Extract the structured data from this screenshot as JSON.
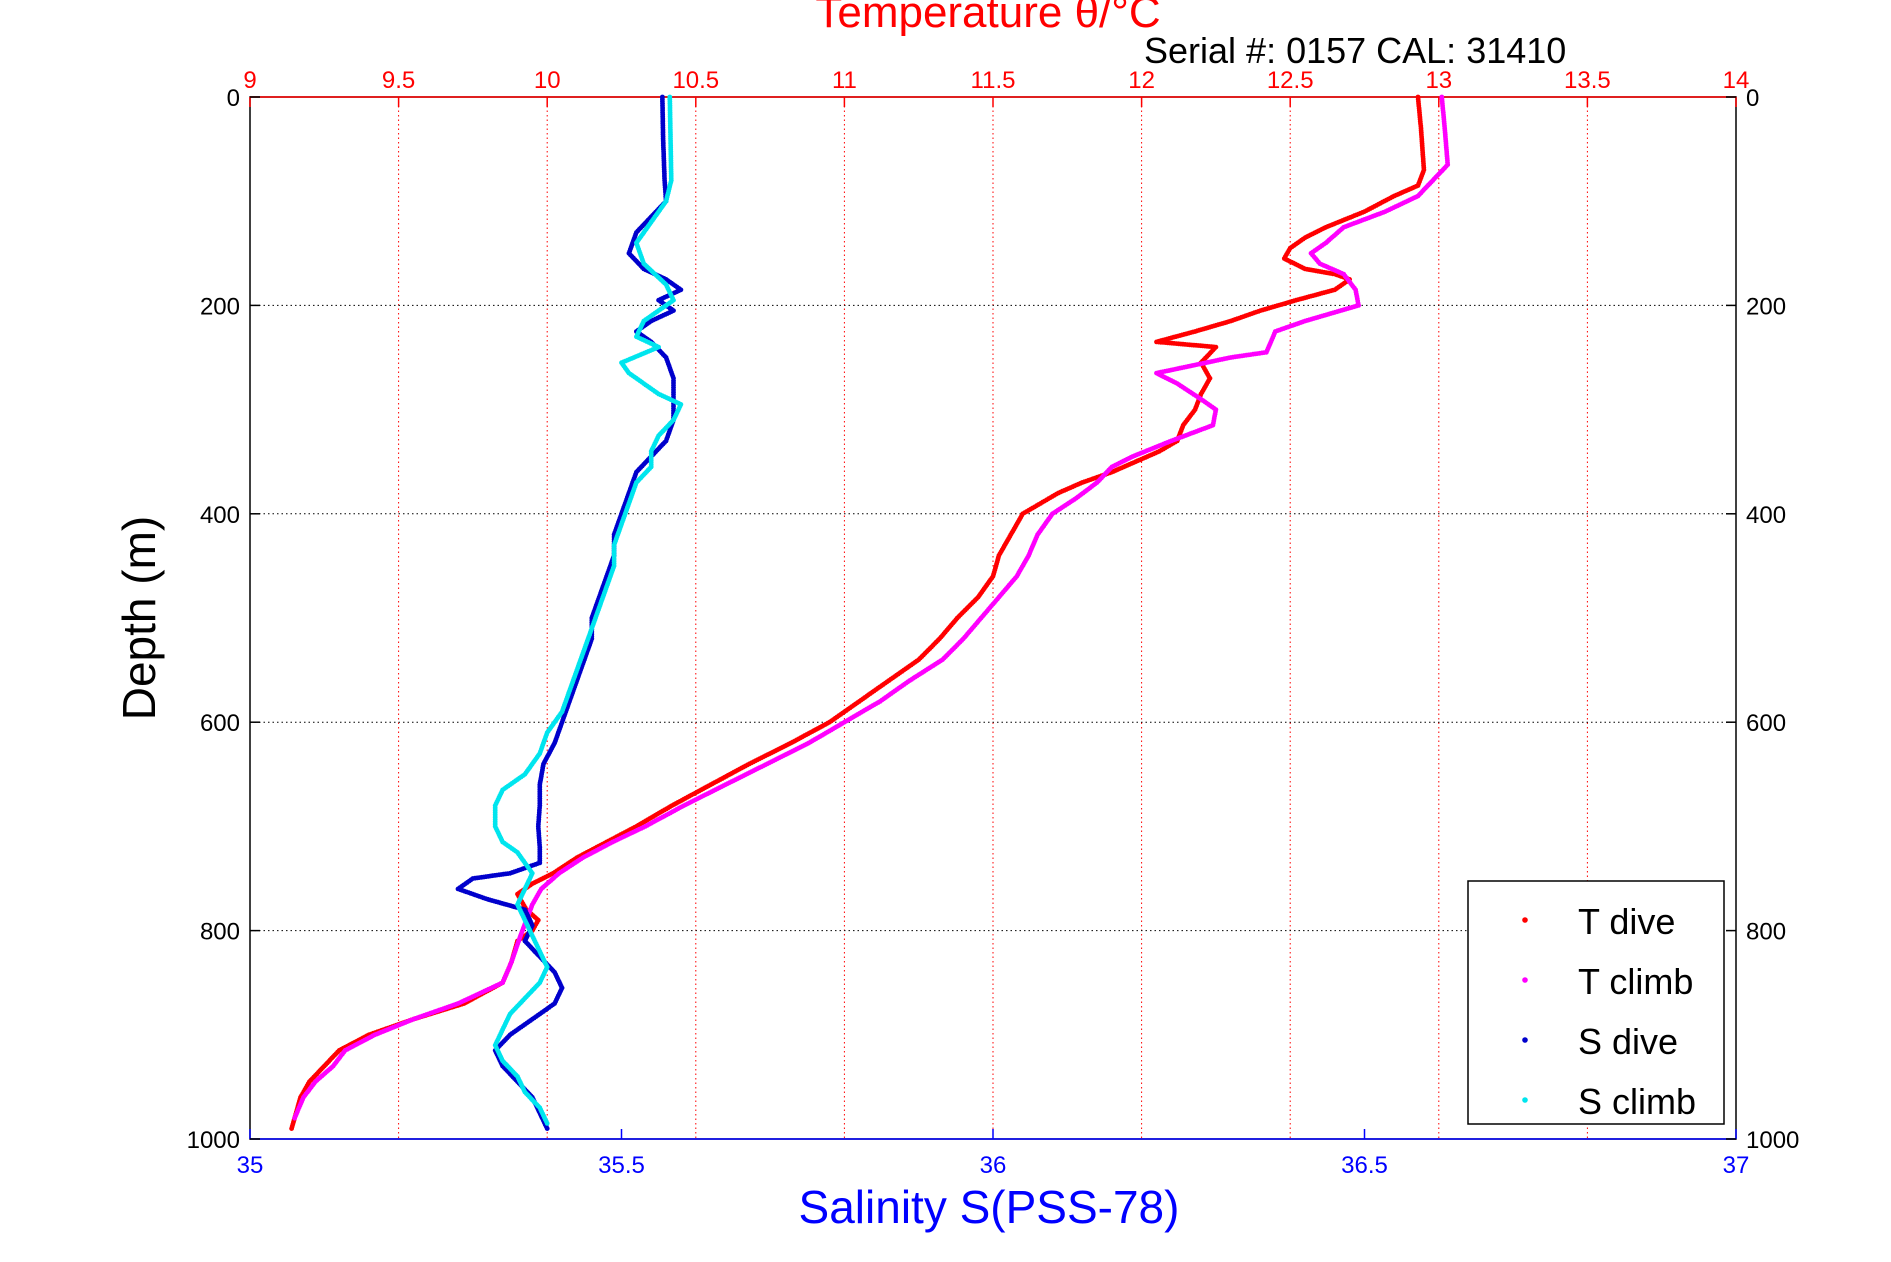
{
  "chart_data": {
    "type": "scatter",
    "title": "Temperature θ/°C",
    "subtitle": "Serial #: 0157  CAL: 31410",
    "ylabel": "Depth (m)",
    "xlabel_bottom": "Salinity S(PSS-78)",
    "xlabel_top": "Temperature θ/°C",
    "ylim": [
      0,
      1000
    ],
    "y_reversed": true,
    "y_ticks": [
      "0",
      "200",
      "400",
      "600",
      "800",
      "1000"
    ],
    "x_bottom_lim": [
      35,
      37
    ],
    "x_bottom_ticks": [
      "35",
      "35.5",
      "36",
      "36.5",
      "37"
    ],
    "x_top_lim": [
      9,
      14
    ],
    "x_top_ticks": [
      "9",
      "9.5",
      "10",
      "10.5",
      "11",
      "11.5",
      "12",
      "12.5",
      "13",
      "13.5",
      "14"
    ],
    "grid": true,
    "legend_position": "bottom-right",
    "colors": {
      "t_dive": "#ff0000",
      "t_climb": "#ff00ff",
      "s_dive": "#0000cc",
      "s_climb": "#00e5ee",
      "top_axis": "#ff0000",
      "bottom_axis": "#0000ff"
    },
    "series": [
      {
        "name": "T dive",
        "axis": "top",
        "color": "#ff0000",
        "points": [
          [
            12.93,
            0
          ],
          [
            12.94,
            30
          ],
          [
            12.95,
            70
          ],
          [
            12.93,
            85
          ],
          [
            12.85,
            95
          ],
          [
            12.75,
            110
          ],
          [
            12.62,
            125
          ],
          [
            12.55,
            135
          ],
          [
            12.5,
            145
          ],
          [
            12.48,
            155
          ],
          [
            12.55,
            165
          ],
          [
            12.65,
            170
          ],
          [
            12.7,
            175
          ],
          [
            12.65,
            185
          ],
          [
            12.52,
            195
          ],
          [
            12.4,
            205
          ],
          [
            12.3,
            215
          ],
          [
            12.18,
            225
          ],
          [
            12.05,
            235
          ],
          [
            12.25,
            240
          ],
          [
            12.2,
            255
          ],
          [
            12.23,
            270
          ],
          [
            12.2,
            285
          ],
          [
            12.18,
            300
          ],
          [
            12.14,
            315
          ],
          [
            12.12,
            330
          ],
          [
            12.06,
            340
          ],
          [
            11.98,
            350
          ],
          [
            11.9,
            360
          ],
          [
            11.8,
            370
          ],
          [
            11.72,
            380
          ],
          [
            11.66,
            390
          ],
          [
            11.6,
            400
          ],
          [
            11.56,
            420
          ],
          [
            11.52,
            440
          ],
          [
            11.5,
            460
          ],
          [
            11.45,
            480
          ],
          [
            11.38,
            500
          ],
          [
            11.32,
            520
          ],
          [
            11.25,
            540
          ],
          [
            11.15,
            560
          ],
          [
            11.05,
            580
          ],
          [
            10.95,
            600
          ],
          [
            10.82,
            620
          ],
          [
            10.68,
            640
          ],
          [
            10.55,
            660
          ],
          [
            10.42,
            680
          ],
          [
            10.3,
            700
          ],
          [
            10.2,
            715
          ],
          [
            10.1,
            730
          ],
          [
            10.02,
            745
          ],
          [
            9.95,
            755
          ],
          [
            9.9,
            765
          ],
          [
            9.93,
            780
          ],
          [
            9.97,
            790
          ],
          [
            9.95,
            800
          ],
          [
            9.9,
            810
          ],
          [
            9.88,
            830
          ],
          [
            9.85,
            850
          ],
          [
            9.72,
            870
          ],
          [
            9.55,
            885
          ],
          [
            9.4,
            900
          ],
          [
            9.3,
            915
          ],
          [
            9.25,
            930
          ],
          [
            9.2,
            945
          ],
          [
            9.17,
            960
          ],
          [
            9.15,
            980
          ],
          [
            9.14,
            990
          ]
        ]
      },
      {
        "name": "T climb",
        "axis": "top",
        "color": "#ff00ff",
        "points": [
          [
            13.01,
            0
          ],
          [
            13.02,
            30
          ],
          [
            13.03,
            65
          ],
          [
            12.98,
            80
          ],
          [
            12.93,
            95
          ],
          [
            12.82,
            110
          ],
          [
            12.68,
            125
          ],
          [
            12.62,
            140
          ],
          [
            12.57,
            150
          ],
          [
            12.6,
            160
          ],
          [
            12.68,
            170
          ],
          [
            12.72,
            185
          ],
          [
            12.73,
            200
          ],
          [
            12.55,
            215
          ],
          [
            12.45,
            225
          ],
          [
            12.42,
            245
          ],
          [
            12.3,
            250
          ],
          [
            12.05,
            265
          ],
          [
            12.12,
            275
          ],
          [
            12.2,
            290
          ],
          [
            12.25,
            300
          ],
          [
            12.24,
            315
          ],
          [
            12.1,
            330
          ],
          [
            11.97,
            345
          ],
          [
            11.9,
            355
          ],
          [
            11.85,
            370
          ],
          [
            11.78,
            385
          ],
          [
            11.7,
            400
          ],
          [
            11.65,
            420
          ],
          [
            11.62,
            440
          ],
          [
            11.58,
            460
          ],
          [
            11.52,
            480
          ],
          [
            11.46,
            500
          ],
          [
            11.4,
            520
          ],
          [
            11.33,
            540
          ],
          [
            11.22,
            560
          ],
          [
            11.12,
            580
          ],
          [
            11.0,
            600
          ],
          [
            10.88,
            620
          ],
          [
            10.74,
            640
          ],
          [
            10.6,
            660
          ],
          [
            10.46,
            680
          ],
          [
            10.33,
            700
          ],
          [
            10.22,
            715
          ],
          [
            10.12,
            730
          ],
          [
            10.04,
            745
          ],
          [
            9.98,
            760
          ],
          [
            9.95,
            775
          ],
          [
            9.93,
            790
          ],
          [
            9.91,
            805
          ],
          [
            9.88,
            830
          ],
          [
            9.85,
            850
          ],
          [
            9.7,
            870
          ],
          [
            9.55,
            885
          ],
          [
            9.42,
            900
          ],
          [
            9.32,
            915
          ],
          [
            9.28,
            930
          ],
          [
            9.22,
            945
          ],
          [
            9.18,
            960
          ],
          [
            9.15,
            980
          ]
        ]
      },
      {
        "name": "S dive",
        "axis": "bottom",
        "color": "#0000cc",
        "points": [
          [
            35.555,
            0
          ],
          [
            35.556,
            40
          ],
          [
            35.558,
            80
          ],
          [
            35.56,
            100
          ],
          [
            35.54,
            115
          ],
          [
            35.52,
            130
          ],
          [
            35.51,
            150
          ],
          [
            35.53,
            165
          ],
          [
            35.56,
            175
          ],
          [
            35.58,
            185
          ],
          [
            35.55,
            195
          ],
          [
            35.57,
            205
          ],
          [
            35.54,
            215
          ],
          [
            35.52,
            225
          ],
          [
            35.54,
            235
          ],
          [
            35.56,
            250
          ],
          [
            35.57,
            270
          ],
          [
            35.57,
            290
          ],
          [
            35.57,
            310
          ],
          [
            35.56,
            330
          ],
          [
            35.54,
            345
          ],
          [
            35.52,
            360
          ],
          [
            35.51,
            380
          ],
          [
            35.5,
            400
          ],
          [
            35.49,
            420
          ],
          [
            35.49,
            440
          ],
          [
            35.48,
            460
          ],
          [
            35.47,
            480
          ],
          [
            35.46,
            500
          ],
          [
            35.46,
            520
          ],
          [
            35.45,
            540
          ],
          [
            35.44,
            560
          ],
          [
            35.43,
            580
          ],
          [
            35.42,
            600
          ],
          [
            35.41,
            620
          ],
          [
            35.395,
            640
          ],
          [
            35.39,
            660
          ],
          [
            35.39,
            680
          ],
          [
            35.388,
            700
          ],
          [
            35.39,
            720
          ],
          [
            35.39,
            735
          ],
          [
            35.35,
            745
          ],
          [
            35.3,
            750
          ],
          [
            35.28,
            760
          ],
          [
            35.32,
            770
          ],
          [
            35.37,
            780
          ],
          [
            35.38,
            795
          ],
          [
            35.37,
            810
          ],
          [
            35.39,
            825
          ],
          [
            35.41,
            840
          ],
          [
            35.42,
            855
          ],
          [
            35.41,
            870
          ],
          [
            35.38,
            885
          ],
          [
            35.35,
            900
          ],
          [
            35.33,
            915
          ],
          [
            35.34,
            930
          ],
          [
            35.36,
            945
          ],
          [
            35.38,
            960
          ],
          [
            35.39,
            975
          ],
          [
            35.4,
            990
          ]
        ]
      },
      {
        "name": "S climb",
        "axis": "bottom",
        "color": "#00e5ee",
        "points": [
          [
            35.565,
            0
          ],
          [
            35.566,
            40
          ],
          [
            35.567,
            80
          ],
          [
            35.56,
            100
          ],
          [
            35.54,
            120
          ],
          [
            35.52,
            140
          ],
          [
            35.53,
            160
          ],
          [
            35.56,
            180
          ],
          [
            35.57,
            195
          ],
          [
            35.55,
            205
          ],
          [
            35.53,
            215
          ],
          [
            35.52,
            230
          ],
          [
            35.55,
            240
          ],
          [
            35.5,
            255
          ],
          [
            35.51,
            265
          ],
          [
            35.53,
            275
          ],
          [
            35.55,
            285
          ],
          [
            35.58,
            295
          ],
          [
            35.57,
            310
          ],
          [
            35.55,
            325
          ],
          [
            35.54,
            340
          ],
          [
            35.54,
            355
          ],
          [
            35.52,
            370
          ],
          [
            35.51,
            390
          ],
          [
            35.5,
            410
          ],
          [
            35.49,
            430
          ],
          [
            35.49,
            450
          ],
          [
            35.48,
            470
          ],
          [
            35.47,
            490
          ],
          [
            35.46,
            510
          ],
          [
            35.45,
            530
          ],
          [
            35.44,
            550
          ],
          [
            35.43,
            570
          ],
          [
            35.42,
            590
          ],
          [
            35.4,
            610
          ],
          [
            35.39,
            630
          ],
          [
            35.37,
            650
          ],
          [
            35.34,
            665
          ],
          [
            35.33,
            680
          ],
          [
            35.33,
            700
          ],
          [
            35.34,
            715
          ],
          [
            35.36,
            725
          ],
          [
            35.37,
            735
          ],
          [
            35.38,
            745
          ],
          [
            35.37,
            760
          ],
          [
            35.36,
            775
          ],
          [
            35.37,
            790
          ],
          [
            35.38,
            805
          ],
          [
            35.39,
            820
          ],
          [
            35.4,
            835
          ],
          [
            35.39,
            850
          ],
          [
            35.37,
            865
          ],
          [
            35.35,
            880
          ],
          [
            35.34,
            895
          ],
          [
            35.33,
            910
          ],
          [
            35.34,
            925
          ],
          [
            35.36,
            940
          ],
          [
            35.37,
            955
          ],
          [
            35.39,
            970
          ],
          [
            35.4,
            985
          ]
        ]
      }
    ]
  }
}
